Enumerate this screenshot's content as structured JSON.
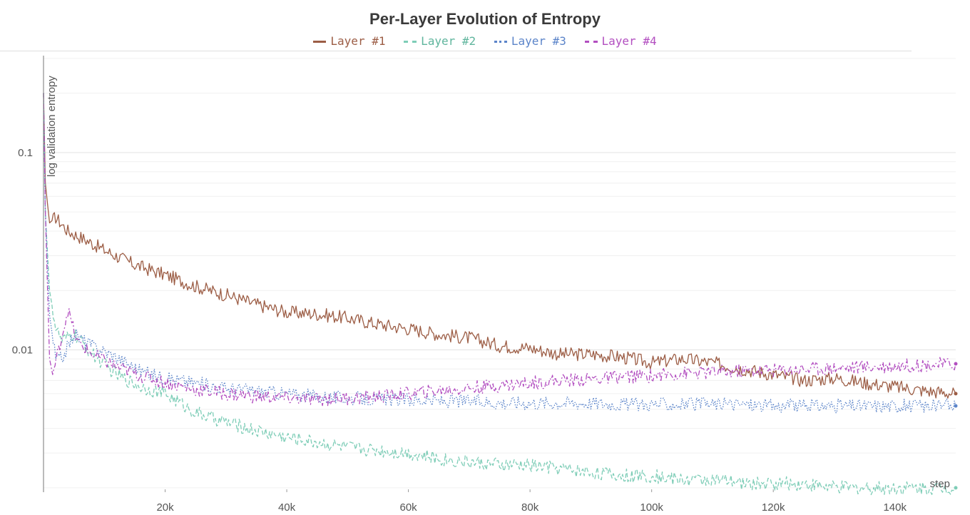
{
  "chart_data": {
    "type": "line",
    "title": "Per-Layer Evolution of Entropy",
    "xlabel": "step",
    "ylabel": "log validation entropy",
    "yscale": "log",
    "xlim": [
      0,
      150000
    ],
    "ylim": [
      0.0019,
      0.31
    ],
    "x_ticks": [
      {
        "value": 20000,
        "label": "20k"
      },
      {
        "value": 40000,
        "label": "40k"
      },
      {
        "value": 60000,
        "label": "60k"
      },
      {
        "value": 80000,
        "label": "80k"
      },
      {
        "value": 100000,
        "label": "100k"
      },
      {
        "value": 120000,
        "label": "120k"
      },
      {
        "value": 140000,
        "label": "140k"
      }
    ],
    "y_ticks": [
      {
        "value": 0.1,
        "label": "0.1"
      },
      {
        "value": 0.01,
        "label": "0.01"
      }
    ],
    "legend_position": "top-center",
    "series": [
      {
        "name": "Layer #1",
        "color": "#9c5d45",
        "dash": "solid",
        "x": [
          0,
          300,
          1000,
          2000,
          4000,
          7000,
          10000,
          15000,
          20000,
          25000,
          30000,
          35000,
          40000,
          45000,
          50000,
          55000,
          60000,
          65000,
          70000,
          75000,
          80000,
          85000,
          90000,
          95000,
          100000,
          105000,
          110000,
          115000,
          120000,
          125000,
          130000,
          135000,
          140000,
          145000,
          150000
        ],
        "y": [
          0.2,
          0.07,
          0.044,
          0.047,
          0.04,
          0.036,
          0.032,
          0.027,
          0.024,
          0.021,
          0.019,
          0.017,
          0.0155,
          0.0152,
          0.0145,
          0.0135,
          0.0128,
          0.012,
          0.0115,
          0.0105,
          0.0102,
          0.0095,
          0.0095,
          0.0092,
          0.0086,
          0.009,
          0.0086,
          0.008,
          0.0075,
          0.007,
          0.0072,
          0.0068,
          0.0065,
          0.0062,
          0.006
        ]
      },
      {
        "name": "Layer #2",
        "color": "#7ecdb7",
        "dash": "dashed",
        "x": [
          0,
          300,
          1000,
          2000,
          3000,
          5000,
          8000,
          12000,
          16000,
          20000,
          25000,
          30000,
          35000,
          40000,
          45000,
          50000,
          55000,
          60000,
          65000,
          70000,
          75000,
          80000,
          85000,
          90000,
          95000,
          100000,
          105000,
          110000,
          115000,
          120000,
          125000,
          130000,
          135000,
          140000,
          145000,
          150000
        ],
        "y": [
          0.2,
          0.05,
          0.02,
          0.013,
          0.011,
          0.012,
          0.0095,
          0.0075,
          0.0065,
          0.006,
          0.0048,
          0.0043,
          0.0039,
          0.0036,
          0.0034,
          0.0032,
          0.0031,
          0.003,
          0.0028,
          0.0027,
          0.0026,
          0.0026,
          0.0025,
          0.0024,
          0.0023,
          0.0023,
          0.0022,
          0.0022,
          0.0021,
          0.0021,
          0.0021,
          0.002,
          0.002,
          0.002,
          0.002,
          0.002
        ]
      },
      {
        "name": "Layer #3",
        "color": "#5b84c9",
        "dash": "dotted",
        "x": [
          0,
          300,
          1000,
          2000,
          3000,
          5000,
          8000,
          12000,
          16000,
          20000,
          25000,
          30000,
          35000,
          40000,
          45000,
          50000,
          55000,
          60000,
          65000,
          70000,
          75000,
          80000,
          85000,
          90000,
          95000,
          100000,
          105000,
          110000,
          115000,
          120000,
          125000,
          130000,
          135000,
          140000,
          145000,
          150000
        ],
        "y": [
          0.2,
          0.05,
          0.015,
          0.009,
          0.009,
          0.012,
          0.0105,
          0.0092,
          0.0078,
          0.0072,
          0.0068,
          0.0064,
          0.0062,
          0.006,
          0.0058,
          0.0057,
          0.0056,
          0.0056,
          0.0055,
          0.0055,
          0.0054,
          0.0054,
          0.0054,
          0.0054,
          0.0053,
          0.0053,
          0.0053,
          0.0053,
          0.0053,
          0.0052,
          0.0052,
          0.0052,
          0.0052,
          0.0052,
          0.0052,
          0.0052
        ]
      },
      {
        "name": "Layer #4",
        "color": "#b24ec0",
        "dash": "dashdot",
        "x": [
          0,
          300,
          1000,
          1500,
          2500,
          4000,
          5500,
          8000,
          12000,
          16000,
          20000,
          25000,
          30000,
          35000,
          40000,
          45000,
          50000,
          55000,
          60000,
          65000,
          70000,
          75000,
          80000,
          85000,
          90000,
          95000,
          100000,
          105000,
          110000,
          115000,
          120000,
          125000,
          130000,
          135000,
          140000,
          145000,
          150000
        ],
        "y": [
          0.2,
          0.05,
          0.009,
          0.0075,
          0.01,
          0.016,
          0.011,
          0.0095,
          0.0082,
          0.0074,
          0.0068,
          0.0063,
          0.006,
          0.0058,
          0.0057,
          0.0056,
          0.0057,
          0.0058,
          0.006,
          0.0062,
          0.0064,
          0.0066,
          0.0068,
          0.007,
          0.0071,
          0.0073,
          0.0074,
          0.0076,
          0.0077,
          0.0078,
          0.0079,
          0.008,
          0.0081,
          0.0082,
          0.0083,
          0.0084,
          0.0085
        ]
      }
    ]
  }
}
